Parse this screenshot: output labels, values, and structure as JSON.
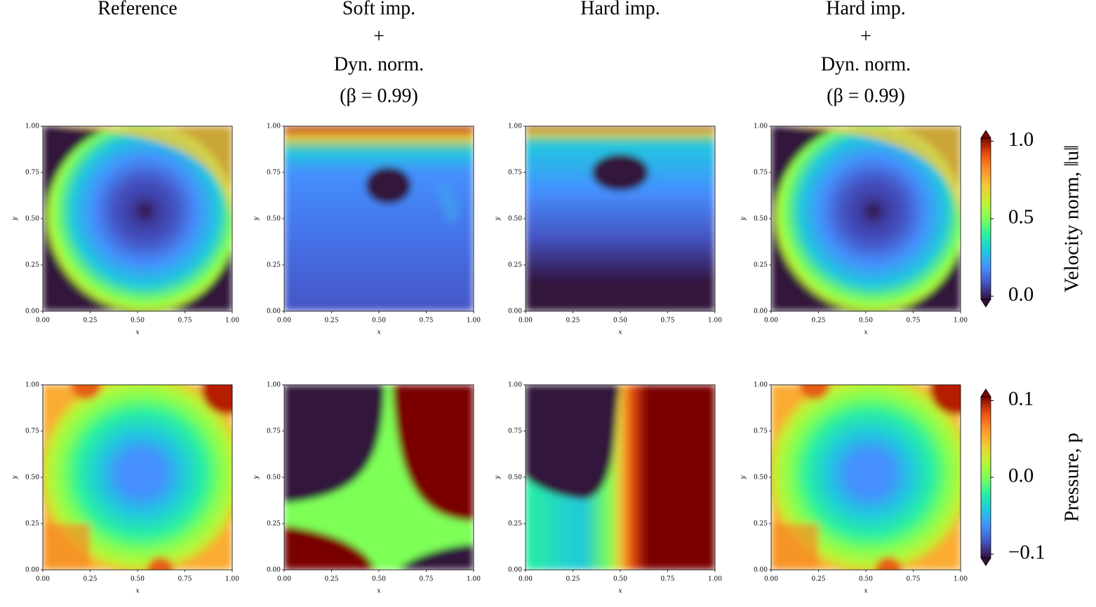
{
  "chart_data": [
    {
      "type": "contour",
      "title": [
        "Reference"
      ],
      "xlabel": "x",
      "ylabel": "y",
      "xlim": [
        0,
        1
      ],
      "ylim": [
        0,
        1
      ],
      "xticks": [
        {
          "value": 0,
          "label": "0.00"
        },
        {
          "value": 0.25,
          "label": "0.25"
        },
        {
          "value": 0.5,
          "label": "0.50"
        },
        {
          "value": 0.75,
          "label": "0.75"
        },
        {
          "value": 1,
          "label": "1.00"
        }
      ],
      "yticks": [
        {
          "value": 0,
          "label": "0.00"
        },
        {
          "value": 0.25,
          "label": "0.25"
        },
        {
          "value": 0.5,
          "label": "0.50"
        },
        {
          "value": 0.75,
          "label": "0.75"
        },
        {
          "value": 1,
          "label": "1.00"
        }
      ]
    },
    {
      "type": "contour",
      "title": [
        "Soft imp.",
        "+",
        "Dyn. norm.",
        "(β = 0.99)"
      ],
      "xlabel": "x",
      "ylabel": "y",
      "xlim": [
        0,
        1
      ],
      "ylim": [
        0,
        1
      ],
      "xticks": [
        {
          "value": 0,
          "label": "0.00"
        },
        {
          "value": 0.25,
          "label": "0.25"
        },
        {
          "value": 0.5,
          "label": "0.50"
        },
        {
          "value": 0.75,
          "label": "0.75"
        },
        {
          "value": 1,
          "label": "1.00"
        }
      ],
      "yticks": [
        {
          "value": 0,
          "label": "0.00"
        },
        {
          "value": 0.25,
          "label": "0.25"
        },
        {
          "value": 0.5,
          "label": "0.50"
        },
        {
          "value": 0.75,
          "label": "0.75"
        },
        {
          "value": 1,
          "label": "1.00"
        }
      ]
    },
    {
      "type": "contour",
      "title": [
        "Hard imp."
      ],
      "xlabel": "x",
      "ylabel": "y",
      "xlim": [
        0,
        1
      ],
      "ylim": [
        0,
        1
      ],
      "xticks": [
        {
          "value": 0,
          "label": "0.00"
        },
        {
          "value": 0.25,
          "label": "0.25"
        },
        {
          "value": 0.5,
          "label": "0.50"
        },
        {
          "value": 0.75,
          "label": "0.75"
        },
        {
          "value": 1,
          "label": "1.00"
        }
      ],
      "yticks": [
        {
          "value": 0,
          "label": "0.00"
        },
        {
          "value": 0.25,
          "label": "0.25"
        },
        {
          "value": 0.5,
          "label": "0.50"
        },
        {
          "value": 0.75,
          "label": "0.75"
        },
        {
          "value": 1,
          "label": "1.00"
        }
      ]
    },
    {
      "type": "contour",
      "title": [
        "Hard imp.",
        "+",
        "Dyn. norm.",
        "(β = 0.99)"
      ],
      "xlabel": "x",
      "ylabel": "y",
      "xlim": [
        0,
        1
      ],
      "ylim": [
        0,
        1
      ],
      "xticks": [
        {
          "value": 0,
          "label": "0.00"
        },
        {
          "value": 0.25,
          "label": "0.25"
        },
        {
          "value": 0.5,
          "label": "0.50"
        },
        {
          "value": 0.75,
          "label": "0.75"
        },
        {
          "value": 1,
          "label": "1.00"
        }
      ],
      "yticks": [
        {
          "value": 0,
          "label": "0.00"
        },
        {
          "value": 0.25,
          "label": "0.25"
        },
        {
          "value": 0.5,
          "label": "0.50"
        },
        {
          "value": 0.75,
          "label": "0.75"
        },
        {
          "value": 1,
          "label": "1.00"
        }
      ],
      "colorbar": {
        "label": "Velocity norm, ‖u‖",
        "lim": [
          -0.02,
          1.02
        ],
        "ticks": [
          {
            "value": 0,
            "label": "0.0"
          },
          {
            "value": 0.5,
            "label": "0.5"
          },
          {
            "value": 1,
            "label": "1.0"
          }
        ]
      }
    },
    {
      "type": "contour",
      "xlabel": "x",
      "ylabel": "y",
      "xlim": [
        0,
        1
      ],
      "ylim": [
        0,
        1
      ],
      "xticks": [
        {
          "value": 0,
          "label": "0.00"
        },
        {
          "value": 0.25,
          "label": "0.25"
        },
        {
          "value": 0.5,
          "label": "0.50"
        },
        {
          "value": 0.75,
          "label": "0.75"
        },
        {
          "value": 1,
          "label": "1.00"
        }
      ],
      "yticks": [
        {
          "value": 0,
          "label": "0.00"
        },
        {
          "value": 0.25,
          "label": "0.25"
        },
        {
          "value": 0.5,
          "label": "0.50"
        },
        {
          "value": 0.75,
          "label": "0.75"
        },
        {
          "value": 1,
          "label": "1.00"
        }
      ]
    },
    {
      "type": "contour",
      "xlabel": "x",
      "ylabel": "y",
      "xlim": [
        0,
        1
      ],
      "ylim": [
        0,
        1
      ],
      "xticks": [
        {
          "value": 0,
          "label": "0.00"
        },
        {
          "value": 0.25,
          "label": "0.25"
        },
        {
          "value": 0.5,
          "label": "0.50"
        },
        {
          "value": 0.75,
          "label": "0.75"
        },
        {
          "value": 1,
          "label": "1.00"
        }
      ],
      "yticks": [
        {
          "value": 0,
          "label": "0.00"
        },
        {
          "value": 0.25,
          "label": "0.25"
        },
        {
          "value": 0.5,
          "label": "0.50"
        },
        {
          "value": 0.75,
          "label": "0.75"
        },
        {
          "value": 1,
          "label": "1.00"
        }
      ]
    },
    {
      "type": "contour",
      "xlabel": "x",
      "ylabel": "y",
      "xlim": [
        0,
        1
      ],
      "ylim": [
        0,
        1
      ],
      "xticks": [
        {
          "value": 0,
          "label": "0.00"
        },
        {
          "value": 0.25,
          "label": "0.25"
        },
        {
          "value": 0.5,
          "label": "0.50"
        },
        {
          "value": 0.75,
          "label": "0.75"
        },
        {
          "value": 1,
          "label": "1.00"
        }
      ],
      "yticks": [
        {
          "value": 0,
          "label": "0.00"
        },
        {
          "value": 0.25,
          "label": "0.25"
        },
        {
          "value": 0.5,
          "label": "0.50"
        },
        {
          "value": 0.75,
          "label": "0.75"
        },
        {
          "value": 1,
          "label": "1.00"
        }
      ]
    },
    {
      "type": "contour",
      "xlabel": "x",
      "ylabel": "y",
      "xlim": [
        0,
        1
      ],
      "ylim": [
        0,
        1
      ],
      "xticks": [
        {
          "value": 0,
          "label": "0.00"
        },
        {
          "value": 0.25,
          "label": "0.25"
        },
        {
          "value": 0.5,
          "label": "0.50"
        },
        {
          "value": 0.75,
          "label": "0.75"
        },
        {
          "value": 1,
          "label": "1.00"
        }
      ],
      "yticks": [
        {
          "value": 0,
          "label": "0.00"
        },
        {
          "value": 0.25,
          "label": "0.25"
        },
        {
          "value": 0.5,
          "label": "0.50"
        },
        {
          "value": 0.75,
          "label": "0.75"
        },
        {
          "value": 1,
          "label": "1.00"
        }
      ],
      "colorbar": {
        "label": "Pressure, p",
        "lim": [
          -0.105,
          0.105
        ],
        "ticks": [
          {
            "value": -0.1,
            "label": "−0.1"
          },
          {
            "value": 0,
            "label": "0.0"
          },
          {
            "value": 0.1,
            "label": "0.1"
          }
        ]
      }
    }
  ]
}
